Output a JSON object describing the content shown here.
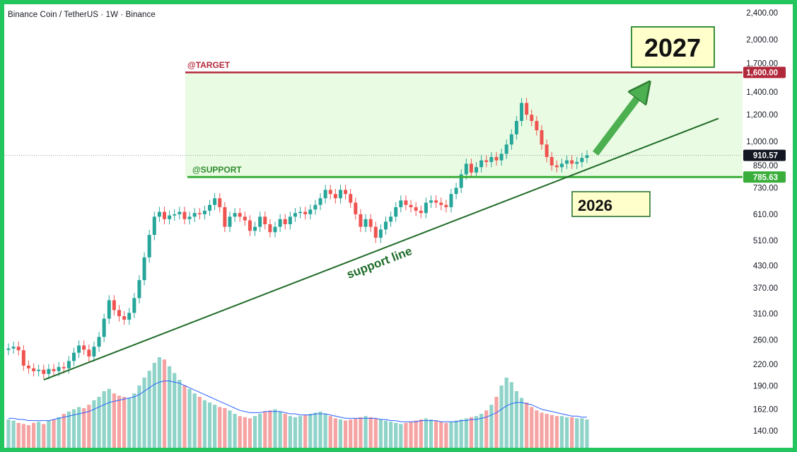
{
  "header": {
    "symbol": "Binance Coin",
    "quote": "TetherUS",
    "interval": "1W",
    "exchange": "Binance",
    "separator": " · "
  },
  "annotations": {
    "target_label": "@TARGET",
    "support_label": "@SUPPORT",
    "trendline_label": "support line",
    "box_2027": "2027",
    "box_2026": "2026"
  },
  "colors": {
    "up": "#26a69a",
    "down": "#ef5350",
    "target": "#b2283b",
    "support": "#3aae3a",
    "trendline": "#1e6b27",
    "zone": "#eafbe3",
    "arrow": "#4caf50",
    "box_fill": "#ffffcc",
    "volume_ma": "#2962ff",
    "frame": "#22c55e"
  },
  "chart_data": {
    "type": "candlestick",
    "title": "Binance Coin / TetherUS · 1W · Binance",
    "scale": "log",
    "y_ticks": [
      {
        "value": 2400,
        "label": "2,400.00"
      },
      {
        "value": 2000,
        "label": "2,000.00"
      },
      {
        "value": 1700,
        "label": "1,700.00"
      },
      {
        "value": 1400,
        "label": "1,400.00"
      },
      {
        "value": 1200,
        "label": "1,200.00"
      },
      {
        "value": 1000,
        "label": "1,000.00"
      },
      {
        "value": 850,
        "label": "850.00"
      },
      {
        "value": 730,
        "label": "730.00"
      },
      {
        "value": 610,
        "label": "610.00"
      },
      {
        "value": 510,
        "label": "510.00"
      },
      {
        "value": 430,
        "label": "430.00"
      },
      {
        "value": 370,
        "label": "370.00"
      },
      {
        "value": 310,
        "label": "310.00"
      },
      {
        "value": 260,
        "label": "260.00"
      },
      {
        "value": 220,
        "label": "220.00"
      },
      {
        "value": 190,
        "label": "190.00"
      },
      {
        "value": 162,
        "label": "162.00"
      },
      {
        "value": 140,
        "label": "140.00"
      }
    ],
    "price_labels": [
      {
        "name": "target",
        "value": 1600,
        "label": "1,600.00"
      },
      {
        "name": "last",
        "value": 910.57,
        "label": "910.57"
      },
      {
        "name": "support",
        "value": 785.63,
        "label": "785.63"
      }
    ],
    "levels": {
      "target": 1600,
      "support": 785.63
    },
    "trendline": {
      "start": 198,
      "end": 1170
    },
    "closes": [
      245,
      248,
      242,
      218,
      214,
      210,
      212,
      206,
      213,
      210,
      216,
      214,
      225,
      238,
      250,
      243,
      232,
      248,
      265,
      300,
      340,
      318,
      305,
      298,
      312,
      345,
      390,
      455,
      530,
      600,
      620,
      590,
      605,
      610,
      620,
      590,
      600,
      615,
      610,
      625,
      650,
      680,
      640,
      560,
      600,
      615,
      600,
      585,
      545,
      560,
      600,
      570,
      540,
      560,
      590,
      570,
      600,
      615,
      620,
      610,
      630,
      650,
      680,
      720,
      700,
      680,
      720,
      700,
      660,
      610,
      560,
      590,
      560,
      520,
      550,
      580,
      600,
      640,
      670,
      650,
      640,
      625,
      615,
      660,
      670,
      660,
      650,
      640,
      700,
      730,
      800,
      860,
      810,
      840,
      880,
      870,
      900,
      880,
      920,
      980,
      1050,
      1150,
      1300,
      1200,
      1150,
      1080,
      980,
      900,
      850,
      840,
      860,
      880,
      860,
      870,
      895,
      910.57
    ],
    "volume": [
      0.25,
      0.24,
      0.22,
      0.21,
      0.2,
      0.22,
      0.23,
      0.21,
      0.24,
      0.25,
      0.27,
      0.3,
      0.32,
      0.34,
      0.36,
      0.35,
      0.38,
      0.42,
      0.45,
      0.5,
      0.52,
      0.48,
      0.46,
      0.45,
      0.44,
      0.48,
      0.55,
      0.62,
      0.68,
      0.75,
      0.8,
      0.78,
      0.72,
      0.66,
      0.6,
      0.55,
      0.52,
      0.48,
      0.45,
      0.42,
      0.4,
      0.38,
      0.36,
      0.35,
      0.33,
      0.3,
      0.28,
      0.27,
      0.26,
      0.28,
      0.3,
      0.32,
      0.33,
      0.34,
      0.32,
      0.3,
      0.28,
      0.27,
      0.28,
      0.29,
      0.3,
      0.31,
      0.32,
      0.3,
      0.28,
      0.26,
      0.25,
      0.24,
      0.25,
      0.26,
      0.27,
      0.28,
      0.27,
      0.26,
      0.25,
      0.24,
      0.23,
      0.22,
      0.21,
      0.22,
      0.23,
      0.24,
      0.25,
      0.26,
      0.25,
      0.24,
      0.23,
      0.22,
      0.23,
      0.24,
      0.25,
      0.26,
      0.27,
      0.28,
      0.3,
      0.33,
      0.38,
      0.45,
      0.55,
      0.62,
      0.58,
      0.5,
      0.44,
      0.4,
      0.36,
      0.33,
      0.31,
      0.3,
      0.29,
      0.28,
      0.28,
      0.27,
      0.27,
      0.26,
      0.26,
      0.25
    ],
    "volume_ma": [
      0.26,
      0.26,
      0.25,
      0.25,
      0.24,
      0.24,
      0.24,
      0.24,
      0.24,
      0.25,
      0.26,
      0.27,
      0.28,
      0.29,
      0.3,
      0.31,
      0.32,
      0.34,
      0.36,
      0.38,
      0.4,
      0.41,
      0.42,
      0.43,
      0.44,
      0.45,
      0.47,
      0.5,
      0.53,
      0.56,
      0.58,
      0.59,
      0.59,
      0.58,
      0.57,
      0.55,
      0.53,
      0.51,
      0.49,
      0.47,
      0.45,
      0.43,
      0.41,
      0.39,
      0.37,
      0.35,
      0.33,
      0.32,
      0.31,
      0.31,
      0.31,
      0.32,
      0.32,
      0.32,
      0.32,
      0.31,
      0.3,
      0.3,
      0.29,
      0.29,
      0.29,
      0.3,
      0.3,
      0.3,
      0.29,
      0.28,
      0.27,
      0.26,
      0.26,
      0.26,
      0.26,
      0.26,
      0.26,
      0.26,
      0.25,
      0.25,
      0.24,
      0.24,
      0.23,
      0.23,
      0.23,
      0.23,
      0.24,
      0.24,
      0.24,
      0.24,
      0.23,
      0.23,
      0.23,
      0.23,
      0.24,
      0.24,
      0.25,
      0.25,
      0.26,
      0.27,
      0.29,
      0.31,
      0.34,
      0.37,
      0.39,
      0.4,
      0.4,
      0.39,
      0.38,
      0.36,
      0.34,
      0.33,
      0.32,
      0.31,
      0.3,
      0.29,
      0.28,
      0.28,
      0.27,
      0.27
    ]
  }
}
